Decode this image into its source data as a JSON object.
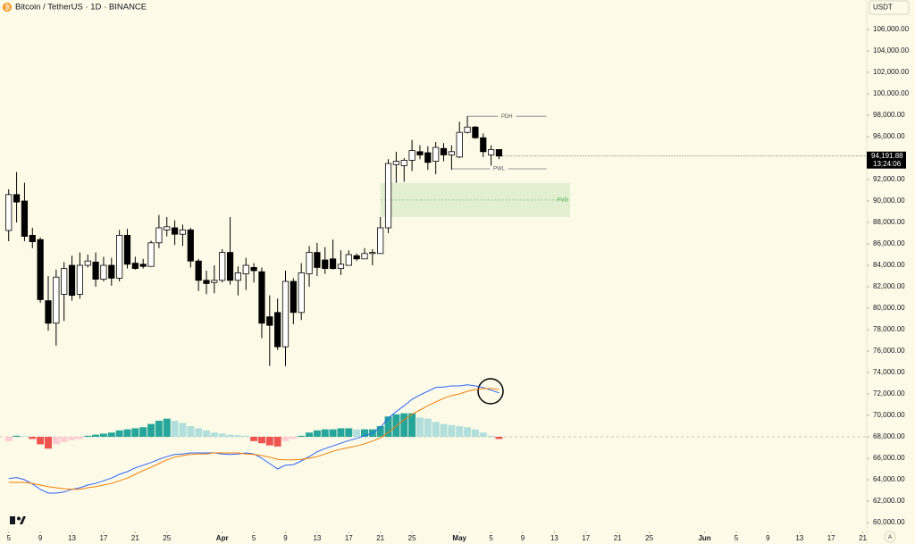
{
  "chart_data": {
    "type": "candlestick",
    "title": "Bitcoin / TetherUS · 1D · BINANCE",
    "currency": "USDT",
    "open": [
      87250,
      90600,
      90000,
      86800,
      86400,
      80700,
      78600,
      81300,
      84000,
      81300,
      84000,
      84300,
      82700,
      84000,
      82800,
      86800,
      84200,
      84100,
      83900,
      86100,
      87300,
      87500,
      86900,
      87300,
      84400,
      82600,
      82400,
      82600,
      85200,
      82600,
      83200,
      83800,
      83400,
      79200,
      79600,
      76400,
      82500,
      79600,
      83200,
      85200,
      84500,
      84600,
      83700,
      84000,
      84900,
      84600,
      85100,
      85100,
      87500,
      93400,
      93300,
      93800,
      94600,
      94500,
      93700,
      94900,
      94300,
      94100,
      96400,
      96900,
      95900,
      94300,
      94800
    ],
    "high": [
      91100,
      92700,
      91700,
      87500,
      86600,
      83000,
      83600,
      84300,
      84900,
      85200,
      85000,
      85200,
      84800,
      84700,
      87300,
      87400,
      84800,
      84600,
      86300,
      88700,
      88500,
      88200,
      87800,
      87500,
      84600,
      83500,
      84000,
      85500,
      88500,
      83900,
      84700,
      84200,
      83800,
      81200,
      80900,
      83500,
      82800,
      84200,
      85800,
      86100,
      85700,
      86400,
      85400,
      85400,
      85100,
      85600,
      85500,
      88500,
      93900,
      94600,
      94000,
      95700,
      95200,
      95100,
      95500,
      95400,
      95200,
      97400,
      97900,
      97000,
      96300,
      95200,
      94800
    ],
    "low": [
      86250,
      88000,
      86250,
      85600,
      80500,
      77900,
      76500,
      78800,
      80700,
      80900,
      83800,
      82000,
      82500,
      82100,
      82500,
      83700,
      83600,
      83700,
      83900,
      85600,
      86700,
      85900,
      85800,
      83800,
      81600,
      81300,
      81400,
      82400,
      82200,
      81200,
      81700,
      82400,
      77200,
      74600,
      76100,
      74600,
      78500,
      78900,
      82000,
      83000,
      83200,
      83600,
      83100,
      84200,
      84400,
      84600,
      84000,
      85100,
      87000,
      91700,
      91800,
      92800,
      93900,
      92900,
      92500,
      93700,
      92900,
      94000,
      96300,
      95800,
      94100,
      93300,
      93900
    ],
    "close": [
      90600,
      89900,
      86700,
      86200,
      80800,
      78600,
      82900,
      83700,
      81200,
      84000,
      84400,
      82700,
      84000,
      82800,
      86800,
      84100,
      83700,
      83900,
      86100,
      87500,
      87600,
      86900,
      87300,
      84400,
      82600,
      82300,
      82600,
      85200,
      82600,
      83300,
      84000,
      83500,
      78600,
      78400,
      76400,
      82500,
      79600,
      83300,
      85200,
      83800,
      83700,
      83700,
      84100,
      85000,
      84600,
      85100,
      85200,
      87500,
      93500,
      93700,
      93800,
      94700,
      94300,
      93600,
      95000,
      94300,
      94600,
      96400,
      96900,
      95900,
      94600,
      94800,
      94191.88
    ],
    "up_color": "#ffffff",
    "down_color": "#000000",
    "xlim": [
      -1.1,
      108.5
    ],
    "ylim": [
      59170,
      108750
    ],
    "xticks": [
      {
        "value": 0,
        "label": "5"
      },
      {
        "value": 4,
        "label": "9"
      },
      {
        "value": 8,
        "label": "13"
      },
      {
        "value": 12,
        "label": "17"
      },
      {
        "value": 16,
        "label": "21"
      },
      {
        "value": 20,
        "label": "25"
      },
      {
        "value": 27,
        "label": "Apr"
      },
      {
        "value": 31,
        "label": "5"
      },
      {
        "value": 35,
        "label": "9"
      },
      {
        "value": 39,
        "label": "13"
      },
      {
        "value": 43,
        "label": "17"
      },
      {
        "value": 47,
        "label": "21"
      },
      {
        "value": 51,
        "label": "25"
      },
      {
        "value": 57,
        "label": "May"
      },
      {
        "value": 61,
        "label": "5"
      },
      {
        "value": 65,
        "label": "9"
      },
      {
        "value": 69,
        "label": "13"
      },
      {
        "value": 73,
        "label": "17"
      },
      {
        "value": 77,
        "label": "21"
      },
      {
        "value": 81,
        "label": "25"
      },
      {
        "value": 88,
        "label": "Jun"
      },
      {
        "value": 92,
        "label": "5"
      },
      {
        "value": 96,
        "label": "9"
      },
      {
        "value": 100,
        "label": "13"
      },
      {
        "value": 104,
        "label": "17"
      },
      {
        "value": 108,
        "label": "21"
      }
    ],
    "yticks": [
      {
        "value": 60000,
        "label": "60,000.00"
      },
      {
        "value": 62000,
        "label": "62,000.00"
      },
      {
        "value": 64000,
        "label": "64,000.00"
      },
      {
        "value": 66000,
        "label": "66,000.00"
      },
      {
        "value": 68000,
        "label": "68,000.00"
      },
      {
        "value": 70000,
        "label": "70,000.00"
      },
      {
        "value": 72000,
        "label": "72,000.00"
      },
      {
        "value": 74000,
        "label": "74,000.00"
      },
      {
        "value": 76000,
        "label": "76,000.00"
      },
      {
        "value": 78000,
        "label": "78,000.00"
      },
      {
        "value": 80000,
        "label": "80,000.00"
      },
      {
        "value": 82000,
        "label": "82,000.00"
      },
      {
        "value": 84000,
        "label": "84,000.00"
      },
      {
        "value": 86000,
        "label": "86,000.00"
      },
      {
        "value": 88000,
        "label": "88,000.00"
      },
      {
        "value": 90000,
        "label": "90,000.00"
      },
      {
        "value": 92000,
        "label": "92,000.00"
      },
      {
        "value": 94000,
        "label": "94,000.00"
      },
      {
        "value": 96000,
        "label": "96,000.00"
      },
      {
        "value": 98000,
        "label": "98,000.00"
      },
      {
        "value": 100000,
        "label": "100,000.00"
      },
      {
        "value": 102000,
        "label": "102,000.00"
      },
      {
        "value": 104000,
        "label": "104,000.00"
      },
      {
        "value": 106000,
        "label": "106,000.00"
      }
    ],
    "last_price": {
      "value": 94191.88,
      "label": "94,191.88"
    },
    "countdown": "13:24:06",
    "levels": [
      {
        "label": "PDH",
        "value": 97900,
        "start": 58,
        "end": 68
      },
      {
        "label": "PWL",
        "value": 93000,
        "start": 56,
        "end": 68
      }
    ],
    "fvg": {
      "label": "FVG",
      "top": 91700,
      "bottom": 88500,
      "start": 47,
      "end": 71
    },
    "macd": {
      "baseline": 68000,
      "histogram": [
        67600,
        68100,
        68050,
        67800,
        67300,
        66900,
        67300,
        67500,
        67700,
        67800,
        68100,
        68200,
        68300,
        68400,
        68600,
        68700,
        68800,
        68900,
        69200,
        69500,
        69700,
        69500,
        69300,
        69000,
        68800,
        68600,
        68400,
        68300,
        68200,
        68150,
        68100,
        67600,
        67400,
        67200,
        67100,
        67600,
        67800,
        68100,
        68400,
        68600,
        68700,
        68700,
        68800,
        68800,
        68700,
        68700,
        68700,
        69000,
        69900,
        70100,
        70200,
        70200,
        69800,
        69700,
        69400,
        69200,
        69100,
        69000,
        68900,
        68700,
        68400,
        68100,
        67800
      ],
      "macd_line": [
        64100,
        64200,
        64000,
        63600,
        63100,
        62750,
        62750,
        62850,
        63100,
        63250,
        63500,
        63650,
        63900,
        64150,
        64500,
        64750,
        65100,
        65350,
        65600,
        65900,
        66150,
        66350,
        66400,
        66500,
        66500,
        66500,
        66500,
        66400,
        66350,
        66400,
        66500,
        66400,
        66000,
        65500,
        65000,
        65350,
        65400,
        65750,
        66150,
        66600,
        66900,
        67150,
        67400,
        67650,
        67850,
        68100,
        68350,
        68850,
        69750,
        70350,
        70900,
        71500,
        71900,
        72250,
        72600,
        72650,
        72750,
        72750,
        72850,
        72750,
        72600,
        72350,
        72100
      ],
      "signal_line": [
        63750,
        63750,
        63750,
        63650,
        63500,
        63350,
        63250,
        63150,
        63100,
        63100,
        63250,
        63350,
        63500,
        63650,
        63900,
        64150,
        64500,
        64850,
        65150,
        65500,
        65850,
        66100,
        66250,
        66350,
        66400,
        66400,
        66500,
        66500,
        66500,
        66500,
        66400,
        66350,
        66250,
        66100,
        65900,
        65850,
        65850,
        65900,
        66000,
        66150,
        66400,
        66650,
        66850,
        67000,
        67150,
        67350,
        67600,
        67900,
        68400,
        69000,
        69600,
        70100,
        70500,
        70900,
        71250,
        71600,
        71850,
        72000,
        72250,
        72400,
        72500,
        72500,
        72400
      ],
      "macd_color": "#2962ff",
      "signal_color": "#f57c00",
      "hist_colors": [
        "#26a69a",
        "#b2dfdb",
        "#ffcdd2",
        "#ef5350"
      ]
    }
  }
}
